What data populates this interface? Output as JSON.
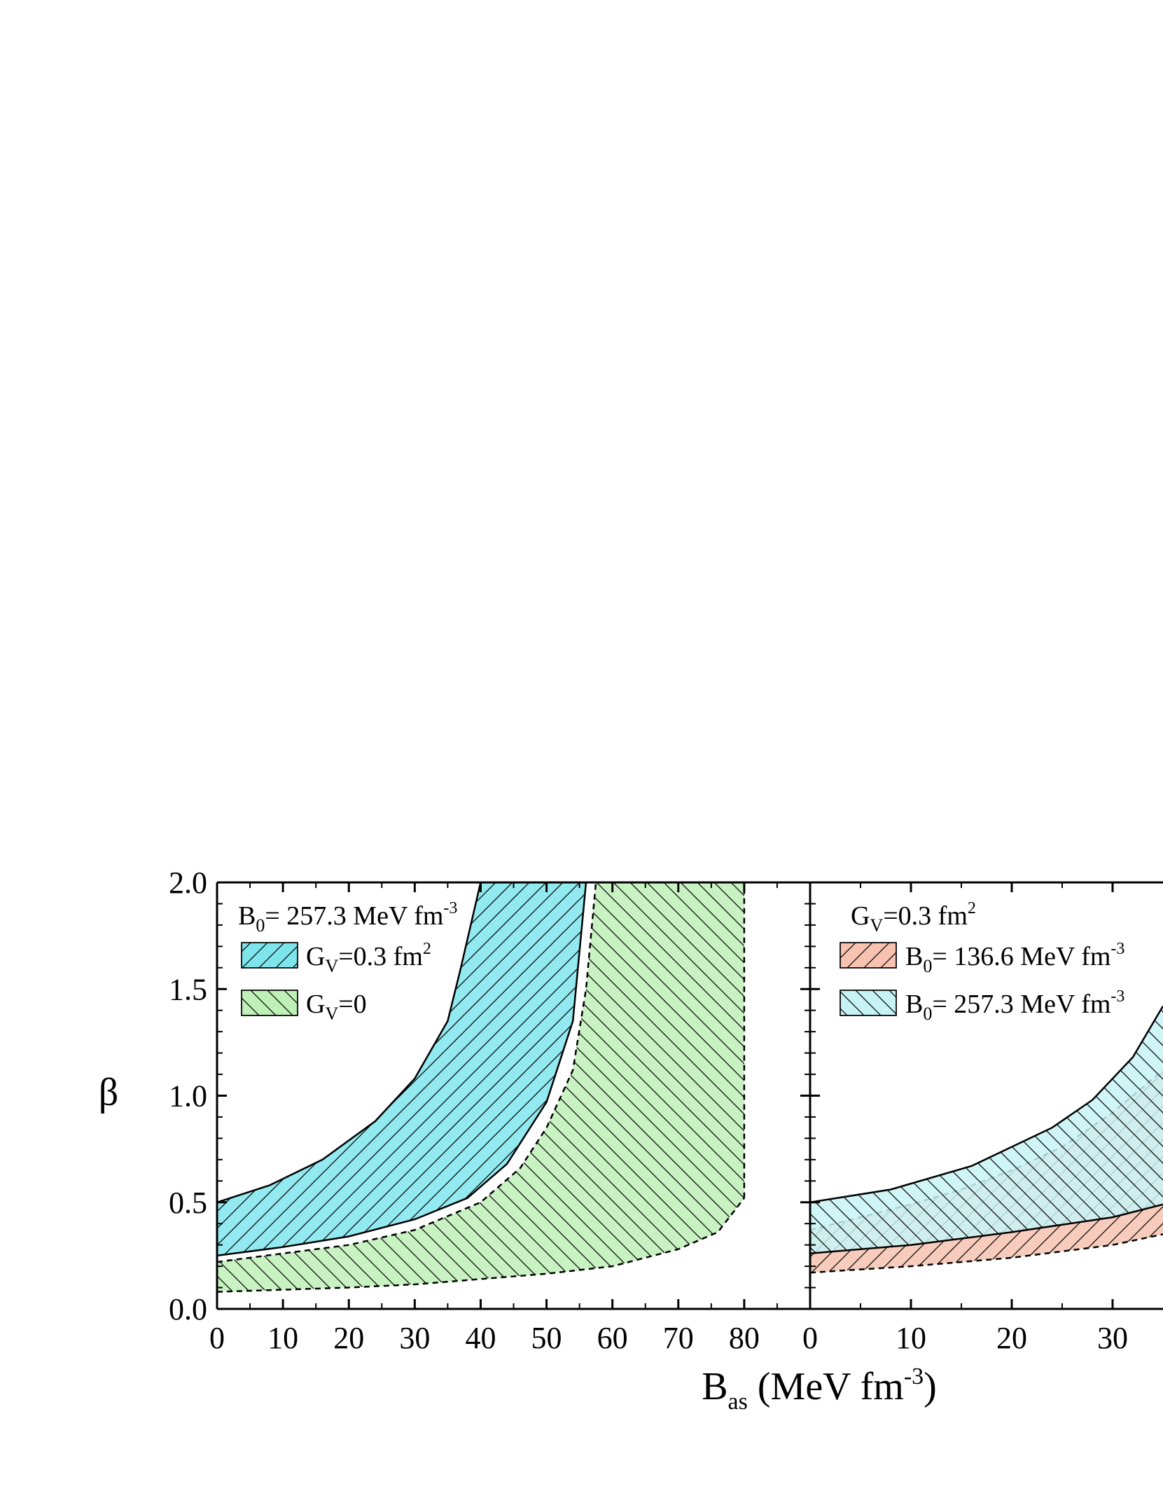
{
  "chart_data": {
    "type": "area",
    "ylabel": "β",
    "xlabel": {
      "main": "B",
      "sub": "as",
      "unit_pre": " (MeV fm",
      "unit_sup": "-3",
      "unit_post": ")"
    },
    "ylim": [
      0,
      2
    ],
    "yticks": [
      "0.0",
      "0.5",
      "1.0",
      "1.5",
      "2.0"
    ],
    "panels": [
      {
        "xlim": [
          0,
          90
        ],
        "xticks": [
          "0",
          "10",
          "20",
          "30",
          "40",
          "50",
          "60",
          "70",
          "80"
        ],
        "xtick_values": [
          0,
          10,
          20,
          30,
          40,
          50,
          60,
          70,
          80
        ],
        "note": {
          "main": "B",
          "sub": "0",
          "rest": "= 257.3 MeV fm",
          "sup": "-3"
        },
        "series": [
          {
            "name": {
              "main": "G",
              "sub": "V",
              "rest": "=0.3 fm",
              "sup": "2"
            },
            "color": "#7fe5ec",
            "pattern": "hatch-forward",
            "boundary": "solid",
            "upper": [
              [
                0,
                0.5
              ],
              [
                8,
                0.58
              ],
              [
                16,
                0.7
              ],
              [
                24,
                0.88
              ],
              [
                30,
                1.08
              ],
              [
                35,
                1.35
              ],
              [
                37,
                1.6
              ],
              [
                40,
                2.0
              ]
            ],
            "lower": [
              [
                0,
                0.25
              ],
              [
                10,
                0.29
              ],
              [
                20,
                0.34
              ],
              [
                30,
                0.42
              ],
              [
                38,
                0.52
              ],
              [
                44,
                0.68
              ],
              [
                50,
                0.97
              ],
              [
                54,
                1.35
              ],
              [
                56,
                2.0
              ]
            ]
          },
          {
            "name": {
              "main": "G",
              "sub": "V",
              "rest": "=0",
              "sup": ""
            },
            "color": "#bff0b8",
            "pattern": "hatch-back",
            "boundary": "dashed",
            "upper": [
              [
                0,
                0.22
              ],
              [
                10,
                0.26
              ],
              [
                20,
                0.3
              ],
              [
                30,
                0.37
              ],
              [
                40,
                0.5
              ],
              [
                46,
                0.66
              ],
              [
                50,
                0.85
              ],
              [
                54,
                1.12
              ],
              [
                56,
                1.5
              ],
              [
                57.5,
                2.0
              ]
            ],
            "lower": [
              [
                0,
                0.08
              ],
              [
                10,
                0.09
              ],
              [
                20,
                0.1
              ],
              [
                30,
                0.115
              ],
              [
                40,
                0.14
              ],
              [
                50,
                0.165
              ],
              [
                60,
                0.2
              ],
              [
                70,
                0.28
              ],
              [
                76,
                0.36
              ],
              [
                80,
                0.52
              ]
            ],
            "right_edge": 80
          }
        ]
      },
      {
        "xlim": [
          0,
          35
        ],
        "xticks": [
          "0",
          "10",
          "20",
          "30"
        ],
        "xtick_values": [
          0,
          10,
          20,
          30
        ],
        "note": {
          "main": "G",
          "sub": "V",
          "rest": "=0.3 fm",
          "sup": "2"
        },
        "series": [
          {
            "name": {
              "main": "B",
              "sub": "0",
              "rest": "= 136.6 MeV fm",
              "sup": "-3"
            },
            "color": "#f7c3b0",
            "pattern": "hatch-forward",
            "boundary": "dashed",
            "upper": [
              [
                0,
                0.37
              ],
              [
                5,
                0.43
              ],
              [
                10,
                0.49
              ],
              [
                15,
                0.56
              ],
              [
                20,
                0.65
              ],
              [
                25,
                0.76
              ],
              [
                30,
                0.92
              ],
              [
                35,
                1.12
              ]
            ],
            "lower": [
              [
                0,
                0.17
              ],
              [
                10,
                0.2
              ],
              [
                20,
                0.24
              ],
              [
                30,
                0.3
              ],
              [
                35,
                0.35
              ]
            ]
          },
          {
            "name": {
              "main": "B",
              "sub": "0",
              "rest": "= 257.3 MeV fm",
              "sup": "-3"
            },
            "color": "#c8f3f6",
            "pattern": "hatch-back",
            "boundary": "solid",
            "upper": [
              [
                0,
                0.5
              ],
              [
                8,
                0.56
              ],
              [
                16,
                0.67
              ],
              [
                24,
                0.85
              ],
              [
                28,
                0.98
              ],
              [
                32,
                1.18
              ],
              [
                35,
                1.42
              ]
            ],
            "lower": [
              [
                0,
                0.26
              ],
              [
                10,
                0.3
              ],
              [
                20,
                0.36
              ],
              [
                30,
                0.43
              ],
              [
                35,
                0.49
              ]
            ]
          }
        ]
      }
    ]
  }
}
